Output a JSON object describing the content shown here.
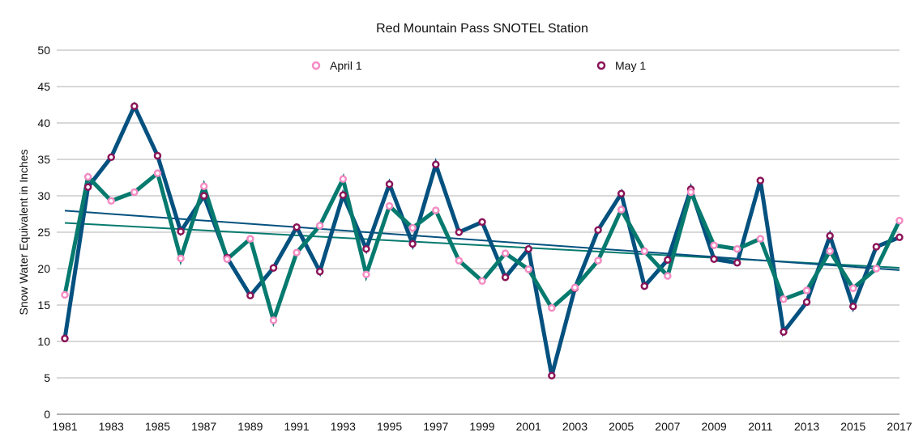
{
  "chart_data": {
    "type": "line",
    "title": "Red Mountain Pass SNOTEL Station",
    "xlabel": "",
    "ylabel": "Snow Water Equivalent in Inches",
    "ylim": [
      0,
      50
    ],
    "yticks": [
      0,
      5,
      10,
      15,
      20,
      25,
      30,
      35,
      40,
      45,
      50
    ],
    "xlim": [
      1981,
      2017
    ],
    "xticks": [
      1981,
      1983,
      1985,
      1987,
      1989,
      1991,
      1993,
      1995,
      1997,
      1999,
      2001,
      2003,
      2005,
      2007,
      2009,
      2011,
      2013,
      2015,
      2017
    ],
    "grid": true,
    "legend": "top",
    "trendlines": true,
    "x": [
      1981,
      1982,
      1983,
      1984,
      1985,
      1986,
      1987,
      1988,
      1989,
      1990,
      1991,
      1992,
      1993,
      1994,
      1995,
      1996,
      1997,
      1998,
      1999,
      2000,
      2001,
      2002,
      2003,
      2004,
      2005,
      2006,
      2007,
      2008,
      2009,
      2010,
      2011,
      2012,
      2013,
      2014,
      2015,
      2016,
      2017
    ],
    "series": [
      {
        "name": "April 1",
        "line_color": "#067a6e",
        "marker_color": "#f48cc4",
        "values": [
          16.4,
          32.6,
          29.3,
          30.5,
          33.1,
          21.4,
          31.3,
          21.3,
          24.1,
          12.9,
          22.2,
          25.9,
          32.3,
          19.2,
          28.6,
          25.6,
          28.0,
          21.1,
          18.3,
          22.1,
          19.9,
          14.6,
          17.4,
          21.1,
          28.1,
          22.4,
          19.0,
          30.5,
          23.2,
          22.7,
          24.1,
          15.8,
          17.0,
          22.4,
          17.3,
          20.0,
          26.6
        ]
      },
      {
        "name": "May 1",
        "line_color": "#04517f",
        "marker_color": "#8b1458",
        "values": [
          10.4,
          31.2,
          35.3,
          42.3,
          35.5,
          25.1,
          30.0,
          21.5,
          16.3,
          20.1,
          25.7,
          19.6,
          30.1,
          22.7,
          31.6,
          23.4,
          34.3,
          25.0,
          26.4,
          18.8,
          22.7,
          5.3,
          17.3,
          25.3,
          30.3,
          17.6,
          21.2,
          30.9,
          21.3,
          20.8,
          32.1,
          11.3,
          15.4,
          24.5,
          14.8,
          23.0,
          24.3
        ]
      }
    ]
  }
}
